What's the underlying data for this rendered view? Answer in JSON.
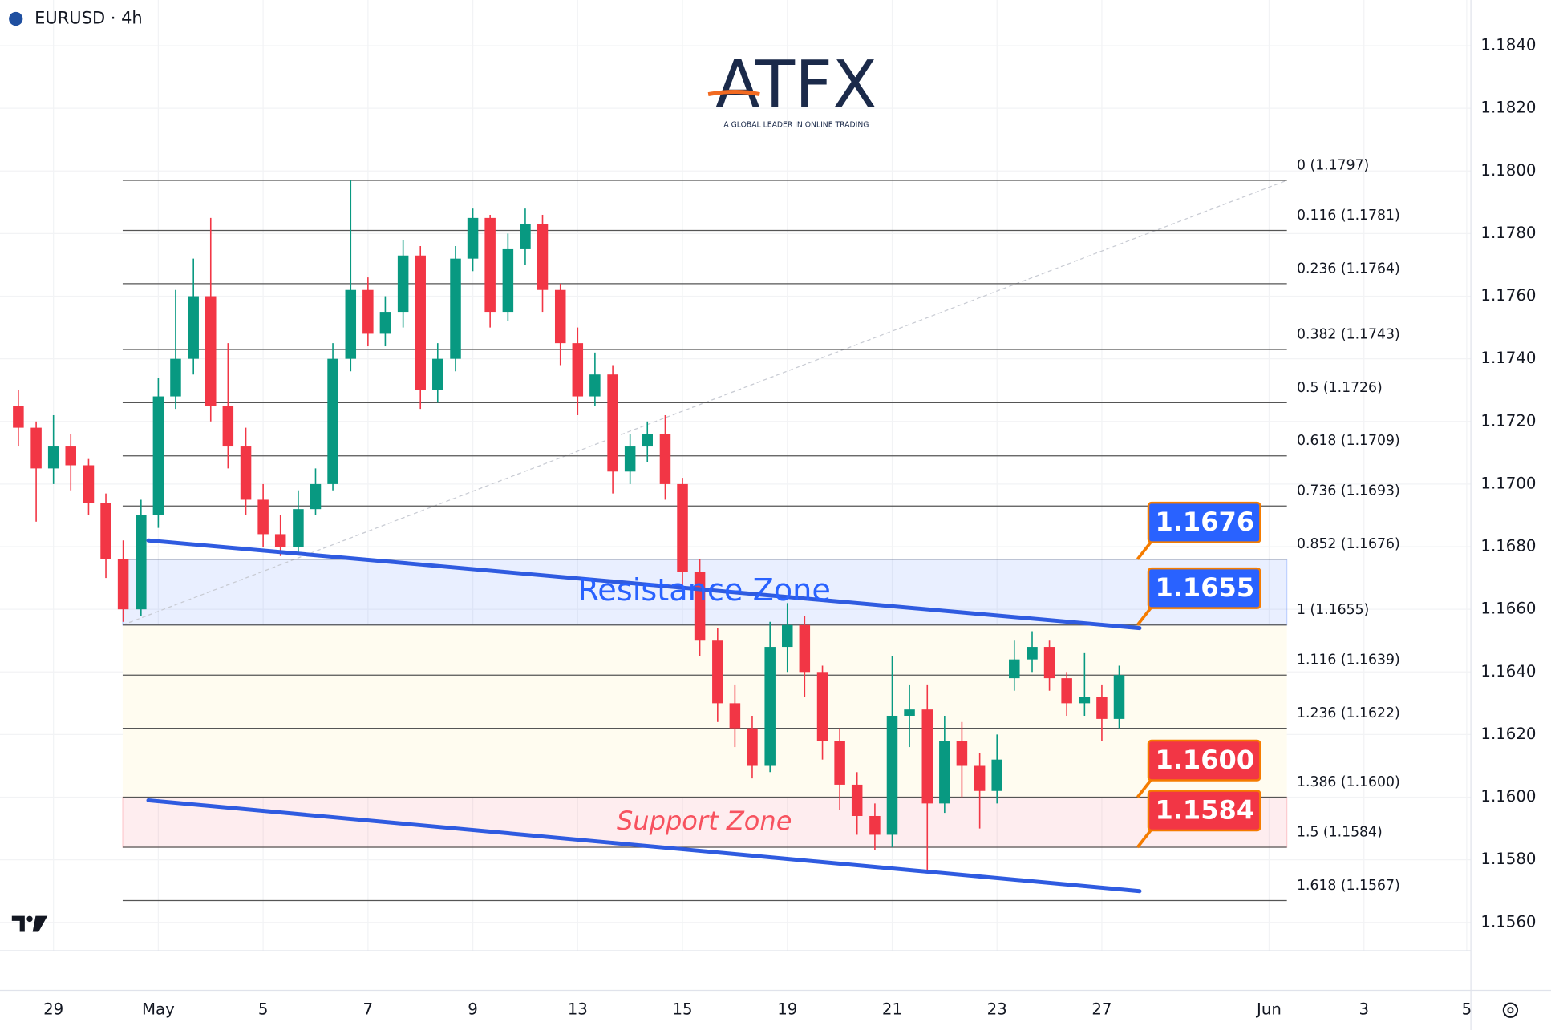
{
  "chart_data": {
    "type": "candlestick",
    "title": "EURUSD · 4h",
    "logo": {
      "text": "ATFX",
      "tagline": "A GLOBAL LEADER IN ONLINE TRADING"
    },
    "up_color": "#089981",
    "down_color": "#f23645",
    "grid": true,
    "xlim": [
      -1.02,
      27.04
    ],
    "ylim": [
      1.1551,
      1.18546
    ],
    "xticks": [
      {
        "value": 0,
        "label": "29"
      },
      {
        "value": 2,
        "label": "May"
      },
      {
        "value": 4,
        "label": "5"
      },
      {
        "value": 6,
        "label": "7"
      },
      {
        "value": 8,
        "label": "9"
      },
      {
        "value": 10,
        "label": "13"
      },
      {
        "value": 12,
        "label": "15"
      },
      {
        "value": 14,
        "label": "19"
      },
      {
        "value": 16,
        "label": "21"
      },
      {
        "value": 18,
        "label": "23"
      },
      {
        "value": 20,
        "label": "27"
      },
      {
        "value": 23.19,
        "label": "Jun"
      },
      {
        "value": 25,
        "label": "3"
      },
      {
        "value": 26.96,
        "label": "5"
      }
    ],
    "yticks": [
      {
        "value": 1.184,
        "label": "1.1840"
      },
      {
        "value": 1.182,
        "label": "1.1820"
      },
      {
        "value": 1.18,
        "label": "1.1800"
      },
      {
        "value": 1.178,
        "label": "1.1780"
      },
      {
        "value": 1.176,
        "label": "1.1760"
      },
      {
        "value": 1.174,
        "label": "1.1740"
      },
      {
        "value": 1.172,
        "label": "1.1720"
      },
      {
        "value": 1.17,
        "label": "1.1700"
      },
      {
        "value": 1.168,
        "label": "1.1680"
      },
      {
        "value": 1.166,
        "label": "1.1660"
      },
      {
        "value": 1.164,
        "label": "1.1640"
      },
      {
        "value": 1.162,
        "label": "1.1620"
      },
      {
        "value": 1.16,
        "label": "1.1600"
      },
      {
        "value": 1.158,
        "label": "1.1580"
      },
      {
        "value": 1.156,
        "label": "1.1560"
      }
    ],
    "x": [
      -0.67,
      -0.33,
      0,
      0.33,
      0.67,
      1,
      1.33,
      1.67,
      2,
      2.33,
      2.67,
      3,
      3.33,
      3.67,
      4,
      4.33,
      4.67,
      5,
      5.33,
      5.67,
      6,
      6.33,
      6.67,
      7,
      7.33,
      7.67,
      8,
      8.33,
      8.67,
      9,
      9.33,
      9.67,
      10,
      10.33,
      10.67,
      11,
      11.33,
      11.67,
      12,
      12.33,
      12.67,
      13,
      13.33,
      13.67,
      14,
      14.33,
      14.67,
      15,
      15.33,
      15.67,
      16,
      16.33,
      16.67,
      17,
      17.33,
      17.67,
      18,
      18.33,
      18.67,
      19,
      19.33,
      19.67,
      20,
      20.33
    ],
    "open": [
      1.1725,
      1.1718,
      1.1705,
      1.1712,
      1.1706,
      1.1694,
      1.1676,
      1.166,
      1.169,
      1.1728,
      1.174,
      1.176,
      1.1725,
      1.1712,
      1.1695,
      1.1684,
      1.168,
      1.1692,
      1.17,
      1.174,
      1.1762,
      1.1748,
      1.1755,
      1.1773,
      1.173,
      1.174,
      1.1772,
      1.1785,
      1.1755,
      1.1775,
      1.1783,
      1.1762,
      1.1745,
      1.1728,
      1.1735,
      1.1704,
      1.1712,
      1.1716,
      1.17,
      1.1672,
      1.165,
      1.163,
      1.1622,
      1.161,
      1.1648,
      1.1655,
      1.164,
      1.1618,
      1.1604,
      1.1594,
      1.1588,
      1.1626,
      1.1628,
      1.1598,
      1.1618,
      1.161,
      1.1602,
      1.1638,
      1.1644,
      1.1648,
      1.1638,
      1.163,
      1.1632,
      1.1625
    ],
    "high": [
      1.173,
      1.172,
      1.1722,
      1.1716,
      1.1708,
      1.1697,
      1.1682,
      1.1695,
      1.1734,
      1.1762,
      1.1772,
      1.1785,
      1.1745,
      1.1718,
      1.17,
      1.169,
      1.1698,
      1.1705,
      1.1745,
      1.1797,
      1.1766,
      1.176,
      1.1778,
      1.1776,
      1.1745,
      1.1776,
      1.1788,
      1.1786,
      1.178,
      1.1788,
      1.1786,
      1.1764,
      1.175,
      1.1742,
      1.1738,
      1.1716,
      1.172,
      1.1722,
      1.1702,
      1.1676,
      1.1654,
      1.1636,
      1.1626,
      1.1656,
      1.1662,
      1.1658,
      1.1642,
      1.1622,
      1.1608,
      1.1598,
      1.1645,
      1.1636,
      1.1636,
      1.1626,
      1.1624,
      1.1614,
      1.162,
      1.165,
      1.1653,
      1.165,
      1.164,
      1.1646,
      1.1636,
      1.1642
    ],
    "low": [
      1.1712,
      1.1688,
      1.17,
      1.1698,
      1.169,
      1.167,
      1.1656,
      1.1658,
      1.1686,
      1.1724,
      1.1735,
      1.172,
      1.1705,
      1.169,
      1.168,
      1.1677,
      1.1678,
      1.169,
      1.1698,
      1.1736,
      1.1744,
      1.1744,
      1.175,
      1.1724,
      1.1726,
      1.1736,
      1.1768,
      1.175,
      1.1752,
      1.177,
      1.1755,
      1.1738,
      1.1722,
      1.1725,
      1.1697,
      1.17,
      1.1707,
      1.1695,
      1.1666,
      1.1645,
      1.1624,
      1.1616,
      1.1606,
      1.1608,
      1.164,
      1.1632,
      1.1612,
      1.1596,
      1.1588,
      1.1583,
      1.1584,
      1.1616,
      1.1576,
      1.1595,
      1.16,
      1.159,
      1.1598,
      1.1634,
      1.164,
      1.1634,
      1.1626,
      1.1626,
      1.1618,
      1.1622
    ],
    "close": [
      1.1718,
      1.1705,
      1.1712,
      1.1706,
      1.1694,
      1.1676,
      1.166,
      1.169,
      1.1728,
      1.174,
      1.176,
      1.1725,
      1.1712,
      1.1695,
      1.1684,
      1.168,
      1.1692,
      1.17,
      1.174,
      1.1762,
      1.1748,
      1.1755,
      1.1773,
      1.173,
      1.174,
      1.1772,
      1.1785,
      1.1755,
      1.1775,
      1.1783,
      1.1762,
      1.1745,
      1.1728,
      1.1735,
      1.1704,
      1.1712,
      1.1716,
      1.17,
      1.1672,
      1.165,
      1.163,
      1.1622,
      1.161,
      1.1648,
      1.1655,
      1.164,
      1.1618,
      1.1604,
      1.1594,
      1.1588,
      1.1626,
      1.1628,
      1.1598,
      1.1618,
      1.161,
      1.1602,
      1.1612,
      1.1644,
      1.1648,
      1.1638,
      1.163,
      1.1632,
      1.1625,
      1.1639
    ],
    "fib_x": [
      1.32,
      23.53
    ],
    "fib_levels": [
      {
        "value": 1.1797,
        "label": "0 (1.1797)"
      },
      {
        "value": 1.1781,
        "label": "0.116 (1.1781)"
      },
      {
        "value": 1.1764,
        "label": "0.236 (1.1764)"
      },
      {
        "value": 1.1743,
        "label": "0.382 (1.1743)"
      },
      {
        "value": 1.1726,
        "label": "0.5 (1.1726)"
      },
      {
        "value": 1.1709,
        "label": "0.618 (1.1709)"
      },
      {
        "value": 1.1693,
        "label": "0.736 (1.1693)"
      },
      {
        "value": 1.1676,
        "label": "0.852 (1.1676)"
      },
      {
        "value": 1.1655,
        "label": "1 (1.1655)"
      },
      {
        "value": 1.1639,
        "label": "1.116 (1.1639)"
      },
      {
        "value": 1.1622,
        "label": "1.236 (1.1622)"
      },
      {
        "value": 1.16,
        "label": "1.386 (1.1600)"
      },
      {
        "value": 1.1584,
        "label": "1.5 (1.1584)"
      },
      {
        "value": 1.1567,
        "label": "1.618 (1.1567)"
      }
    ],
    "zones": [
      {
        "label": "Resistance Zone",
        "top": 1.1676,
        "bottom": 1.1655,
        "color": "#2962ff"
      },
      {
        "label": "Support Zone",
        "top": 1.16,
        "bottom": 1.1584,
        "color": "#f7525f"
      }
    ],
    "trendlines": [
      {
        "x": [
          1.81,
          20.72
        ],
        "y": [
          1.1682,
          1.1654
        ],
        "color": "#2f5be0"
      },
      {
        "x": [
          1.81,
          20.72
        ],
        "y": [
          1.1599,
          1.157
        ],
        "color": "#2f5be0"
      }
    ],
    "fib_trend": {
      "x": [
        1.32,
        23.53
      ],
      "y": [
        1.1655,
        1.1797
      ]
    },
    "callouts": [
      {
        "value": 1.1676,
        "label": "1.1676",
        "color": "#2962ff"
      },
      {
        "value": 1.1655,
        "label": "1.1655",
        "color": "#2962ff"
      },
      {
        "value": 1.16,
        "label": "1.1600",
        "color": "#f23645"
      },
      {
        "value": 1.1584,
        "label": "1.1584",
        "color": "#f23645"
      }
    ]
  }
}
